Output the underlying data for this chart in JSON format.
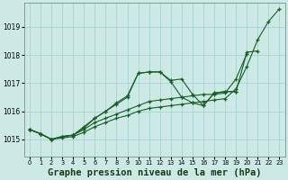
{
  "background_color": "#cce9e5",
  "grid_color": "#aad4cf",
  "line_color": "#1a5c28",
  "xlabel": "Graphe pression niveau de la mer (hPa)",
  "xlabel_fontsize": 7.5,
  "ylim": [
    1014.4,
    1019.85
  ],
  "xlim": [
    -0.5,
    23.5
  ],
  "yticks": [
    1015,
    1016,
    1017,
    1018,
    1019
  ],
  "xticks": [
    0,
    1,
    2,
    3,
    4,
    5,
    6,
    7,
    8,
    9,
    10,
    11,
    12,
    13,
    14,
    15,
    16,
    17,
    18,
    19,
    20,
    21,
    22,
    23
  ],
  "series": [
    {
      "x": [
        0,
        1,
        2,
        3,
        4,
        5,
        6,
        7,
        8,
        9,
        10,
        11,
        12,
        13,
        14,
        15,
        16,
        17,
        18,
        19,
        20,
        21,
        22,
        23
      ],
      "y": [
        1015.35,
        1015.2,
        1015.0,
        1015.05,
        1015.1,
        1015.25,
        1015.45,
        1015.6,
        1015.75,
        1015.85,
        1016.0,
        1016.1,
        1016.15,
        1016.2,
        1016.25,
        1016.3,
        1016.35,
        1016.4,
        1016.45,
        1016.8,
        1017.6,
        1018.55,
        1019.2,
        1019.65
      ]
    },
    {
      "x": [
        0,
        1,
        2,
        3,
        4,
        5,
        6,
        7,
        8,
        9,
        10,
        11,
        12,
        13,
        14,
        15,
        16,
        17,
        18,
        19,
        20,
        21
      ],
      "y": [
        1015.35,
        1015.2,
        1015.0,
        1015.1,
        1015.15,
        1015.4,
        1015.75,
        1016.0,
        1016.25,
        1016.5,
        1017.35,
        1017.4,
        1017.4,
        1017.05,
        1016.5,
        1016.3,
        1016.2,
        1016.65,
        1016.7,
        1016.7,
        1018.1,
        1018.15
      ]
    },
    {
      "x": [
        0,
        1,
        2,
        3,
        4,
        5,
        6,
        7,
        8,
        9,
        10,
        11,
        12,
        13,
        14,
        15,
        16,
        17,
        18,
        19
      ],
      "y": [
        1015.35,
        1015.2,
        1015.0,
        1015.1,
        1015.15,
        1015.45,
        1015.75,
        1016.0,
        1016.3,
        1016.55,
        1017.35,
        1017.4,
        1017.4,
        1017.1,
        1017.15,
        1016.6,
        1016.2,
        1016.65,
        1016.7,
        1016.7
      ]
    },
    {
      "x": [
        0,
        1,
        2,
        3,
        4,
        5,
        6,
        7,
        8,
        9,
        10,
        11,
        12,
        13,
        14,
        15,
        16,
        17,
        18,
        19,
        20
      ],
      "y": [
        1015.35,
        1015.2,
        1015.0,
        1015.1,
        1015.15,
        1015.35,
        1015.6,
        1015.75,
        1015.9,
        1016.05,
        1016.2,
        1016.35,
        1016.4,
        1016.45,
        1016.5,
        1016.55,
        1016.6,
        1016.6,
        1016.65,
        1017.15,
        1018.05
      ]
    }
  ]
}
